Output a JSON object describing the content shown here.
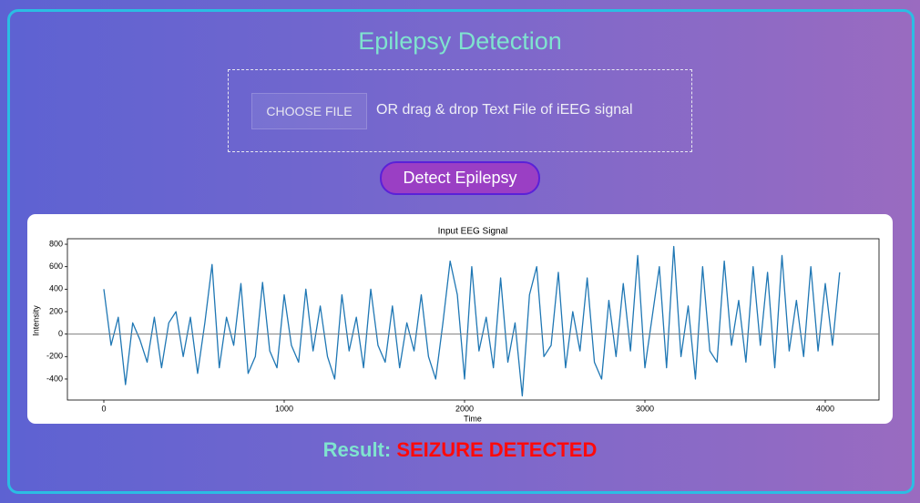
{
  "page_title": "Epilepsy Detection",
  "upload_button": "CHOOSE FILE",
  "upload_hint": "OR drag & drop Text File of iEEG signal",
  "detect_button": "Detect Epilepsy",
  "chart_data": {
    "type": "line",
    "title": "Input EEG Signal",
    "x_label": "Time",
    "y_label": "Intensity",
    "color": "#1f77b4",
    "hline": 0,
    "hline_color": "#808080",
    "xlim": [
      -202,
      4298
    ],
    "ylim": [
      -587,
      849
    ],
    "xticks": [
      0,
      1000,
      2000,
      3000,
      4000
    ],
    "yticks": [
      -400,
      -200,
      0,
      200,
      400,
      600,
      800
    ],
    "x": [
      0,
      40,
      80,
      120,
      160,
      200,
      240,
      280,
      320,
      360,
      400,
      440,
      480,
      520,
      560,
      600,
      640,
      680,
      720,
      760,
      800,
      840,
      880,
      920,
      960,
      1000,
      1040,
      1080,
      1120,
      1160,
      1200,
      1240,
      1280,
      1320,
      1360,
      1400,
      1440,
      1480,
      1520,
      1560,
      1600,
      1640,
      1680,
      1720,
      1760,
      1800,
      1840,
      1880,
      1920,
      1960,
      2000,
      2040,
      2080,
      2120,
      2160,
      2200,
      2240,
      2280,
      2320,
      2360,
      2400,
      2440,
      2480,
      2520,
      2560,
      2600,
      2640,
      2680,
      2720,
      2760,
      2800,
      2840,
      2880,
      2920,
      2960,
      3000,
      3040,
      3080,
      3120,
      3160,
      3200,
      3240,
      3280,
      3320,
      3360,
      3400,
      3440,
      3480,
      3520,
      3560,
      3600,
      3640,
      3680,
      3720,
      3760,
      3800,
      3840,
      3880,
      3920,
      3960,
      4000,
      4040,
      4080
    ],
    "values": [
      400,
      -100,
      150,
      -450,
      100,
      -50,
      -250,
      150,
      -300,
      100,
      200,
      -200,
      150,
      -350,
      100,
      620,
      -300,
      150,
      -100,
      450,
      -350,
      -200,
      460,
      -150,
      -300,
      350,
      -100,
      -250,
      400,
      -150,
      250,
      -200,
      -400,
      350,
      -150,
      150,
      -300,
      400,
      -100,
      -250,
      250,
      -300,
      100,
      -150,
      350,
      -200,
      -400,
      100,
      650,
      350,
      -400,
      600,
      -150,
      150,
      -300,
      500,
      -250,
      100,
      -550,
      350,
      600,
      -200,
      -100,
      550,
      -300,
      200,
      -150,
      500,
      -250,
      -400,
      300,
      -200,
      450,
      -150,
      700,
      -300,
      150,
      600,
      -300,
      780,
      -200,
      250,
      -400,
      600,
      -150,
      -250,
      650,
      -100,
      300,
      -250,
      600,
      -100,
      550,
      -300,
      700,
      -150,
      300,
      -200,
      600,
      -150,
      450,
      -100,
      550
    ]
  },
  "result_label": "Result:",
  "result_value": "SEIZURE DETECTED"
}
